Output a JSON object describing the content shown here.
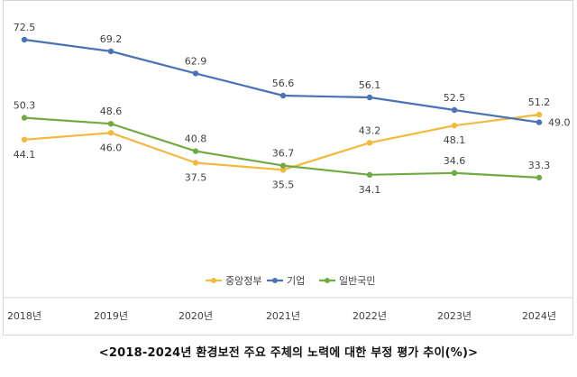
{
  "caption": "<2018-2024년 환경보전 주요 주체의 노력에 대한 부정 평가 추이(%)>",
  "chart_data": {
    "type": "line",
    "categories": [
      "2018년",
      "2019년",
      "2020년",
      "2021년",
      "2022년",
      "2023년",
      "2024년"
    ],
    "series": [
      {
        "name": "중앙정부",
        "color": "#f2b93b",
        "values": [
          44.1,
          46.0,
          37.5,
          35.5,
          43.2,
          48.1,
          51.2
        ]
      },
      {
        "name": "기업",
        "color": "#4a72b5",
        "values": [
          72.5,
          69.2,
          62.9,
          56.6,
          56.1,
          52.5,
          49.0
        ]
      },
      {
        "name": "일반국민",
        "color": "#72aa42",
        "values": [
          50.3,
          48.6,
          40.8,
          36.7,
          34.1,
          34.6,
          33.3
        ]
      }
    ],
    "ylim": [
      20,
      80
    ],
    "grid": false,
    "legend_position": "bottom-center",
    "data_labels": true
  }
}
